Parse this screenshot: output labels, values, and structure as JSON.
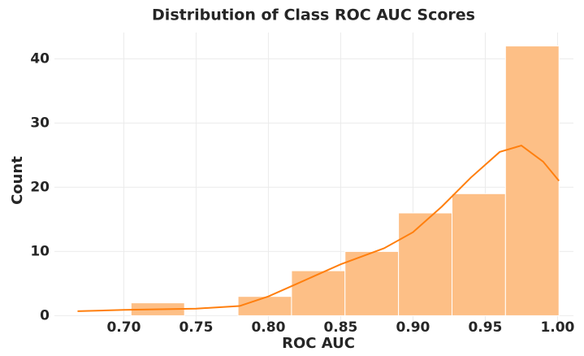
{
  "chart_data": {
    "type": "histogram",
    "title": "Distribution of Class ROC AUC Scores",
    "xlabel": "ROC AUC",
    "ylabel": "Count",
    "bins": [
      0.668,
      0.705,
      0.742,
      0.779,
      0.816,
      0.853,
      0.89,
      0.927,
      0.964,
      1.001
    ],
    "counts": [
      0,
      2,
      0,
      3,
      7,
      10,
      16,
      19,
      42
    ],
    "color": "#fdbf86",
    "line_color": "#ff7f0e",
    "kde": {
      "x": [
        0.668,
        0.7,
        0.75,
        0.78,
        0.8,
        0.82,
        0.85,
        0.88,
        0.9,
        0.92,
        0.94,
        0.96,
        0.975,
        0.99,
        1.001
      ],
      "values": [
        0.7,
        0.9,
        1.1,
        1.5,
        3,
        5,
        8,
        10.5,
        13,
        17,
        21.5,
        25.5,
        26.5,
        24,
        21
      ]
    },
    "xlim": [
      0.652,
      1.011
    ],
    "ylim": [
      -2.1,
      44.1
    ],
    "xticks": [
      {
        "value": 0.7,
        "label": "0.70"
      },
      {
        "value": 0.75,
        "label": "0.75"
      },
      {
        "value": 0.8,
        "label": "0.80"
      },
      {
        "value": 0.85,
        "label": "0.85"
      },
      {
        "value": 0.9,
        "label": "0.90"
      },
      {
        "value": 0.95,
        "label": "0.95"
      },
      {
        "value": 1,
        "label": "1.00"
      }
    ],
    "yticks": [
      0,
      10,
      20,
      30,
      40
    ],
    "grid": true
  }
}
